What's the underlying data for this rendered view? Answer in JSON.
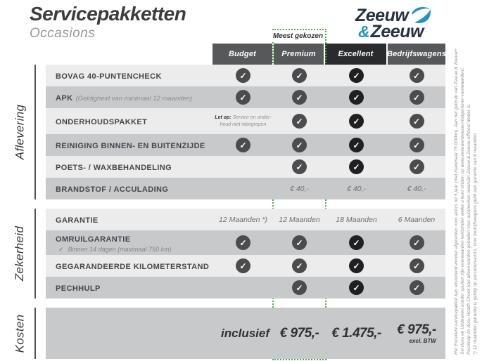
{
  "title": "Servicepakketten",
  "subtitle": "Occasions",
  "logo": {
    "top": "Zeeuw",
    "amp": "&",
    "bottom": "Zeeuw"
  },
  "badge": "Meest gekozen",
  "columns": [
    "Budget",
    "Premium",
    "Excellent",
    "Bedrijfswagens"
  ],
  "sections": [
    {
      "label": "Aflevering",
      "rows": [
        {
          "label": "BOVAG 40-PUNTENCHECK",
          "cells": [
            {
              "t": "check"
            },
            {
              "t": "check"
            },
            {
              "t": "check"
            },
            {
              "t": "check"
            }
          ]
        },
        {
          "label": "APK",
          "sublabel_inline": "(Geldigheid van minimaal 12 maanden)",
          "cells": [
            {
              "t": "check"
            },
            {
              "t": "check"
            },
            {
              "t": "check"
            },
            {
              "t": "check"
            }
          ]
        },
        {
          "label": "ONDERHOUDSPAKKET",
          "cells": [
            {
              "t": "note",
              "bold": "Let op:",
              "lines": [
                "Service en onder-",
                "houd niet inbegrepen"
              ]
            },
            {
              "t": "check"
            },
            {
              "t": "check"
            },
            {
              "t": "check"
            }
          ]
        },
        {
          "label": "REINIGING BINNEN- EN BUITENZIJDE",
          "cells": [
            {
              "t": "check"
            },
            {
              "t": "check"
            },
            {
              "t": "check"
            },
            {
              "t": "check"
            }
          ]
        },
        {
          "label": "POETS- / WAXBEHANDELING",
          "cells": [
            {
              "t": "none"
            },
            {
              "t": "check"
            },
            {
              "t": "check"
            },
            {
              "t": "check"
            }
          ]
        },
        {
          "label": "BRANDSTOF / ACCULADING",
          "cells": [
            {
              "t": "none"
            },
            {
              "t": "text",
              "v": "€ 40,-"
            },
            {
              "t": "text",
              "v": "€ 40,-"
            },
            {
              "t": "text",
              "v": "€ 40,-"
            }
          ]
        }
      ]
    },
    {
      "label": "Zekerheid",
      "rows": [
        {
          "label": "GARANTIE",
          "cells": [
            {
              "t": "text",
              "v": "12 Maanden *)"
            },
            {
              "t": "text",
              "v": "12 Maanden"
            },
            {
              "t": "text",
              "v": "18 Maanden"
            },
            {
              "t": "text",
              "v": "6 Maanden"
            }
          ]
        },
        {
          "label": "OMRUILGARANTIE",
          "sublabel_check": "✓",
          "sublabel": "Binnen 14 dagen (maximaal 750 km)",
          "cells": [
            {
              "t": "check"
            },
            {
              "t": "check"
            },
            {
              "t": "check"
            },
            {
              "t": "check"
            }
          ]
        },
        {
          "label": "GEGARANDEERDE KILOMETERSTAND",
          "cells": [
            {
              "t": "check"
            },
            {
              "t": "check"
            },
            {
              "t": "check"
            },
            {
              "t": "check"
            }
          ]
        },
        {
          "label": "PECHHULP",
          "cells": [
            {
              "t": "none"
            },
            {
              "t": "check"
            },
            {
              "t": "check"
            },
            {
              "t": "check"
            }
          ]
        }
      ]
    },
    {
      "label": "Kosten",
      "rows": [
        {
          "label": "",
          "cells": [
            {
              "t": "label",
              "v": "inclusief"
            },
            {
              "t": "price",
              "v": "€ 975,-"
            },
            {
              "t": "price",
              "v": "€ 1.475,-"
            },
            {
              "t": "price",
              "v": "€ 975,-",
              "sub": "excl. BTW"
            }
          ]
        }
      ]
    }
  ],
  "footnotes": [
    "Het Excellent-servicepakket kan uitsluitend worden afgesloten voor auto's tot 5 jaar (met maximaal 75.000km). Aan het gebruik van Zeeuw & Zeeuw+",
    "Services en Uitdeuken zonder spuiten zijn voorwaarden verbonden welke u kunt vinden op www.zeeuwenzeeuw.nl/algemene-voorwaarden/.",
    "Pechhulp en Accu Health Check kan alleen worden geboden voor automerken waarvan Zeeuw & Zeeuw officieel dealer is.",
    "*) 12 maanden garantie is geldig op personenauto's; voor bedrijfswagens geldt een garantie van 6 maanden."
  ],
  "colors": {
    "accent_green": "#4aae50",
    "brand_blue": "#2093cc",
    "brand_navy": "#25323f",
    "header_gray": "#57585a",
    "header_dark": "#2a2b2d",
    "row_light": "#ececed",
    "row_dark": "#c8c9cb",
    "check_circle": "#4b4c4e",
    "check_circle_dark": "#1f2022"
  }
}
